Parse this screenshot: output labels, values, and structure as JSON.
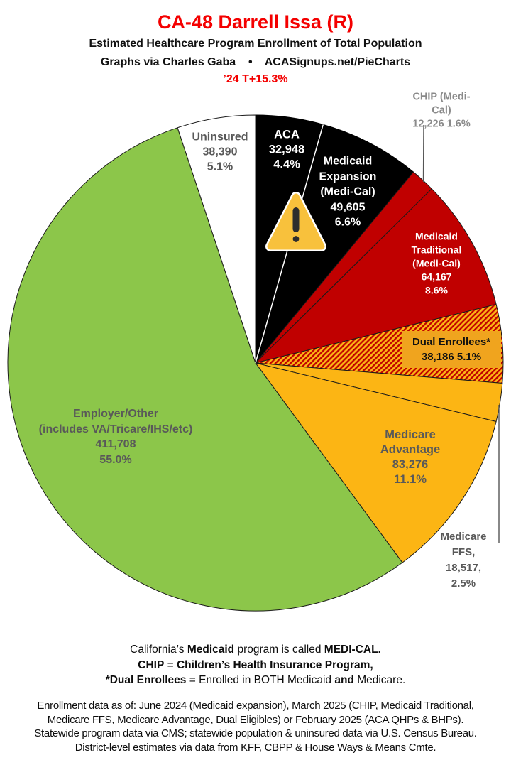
{
  "header": {
    "title": "CA-48 Darrell Issa (R)",
    "subtitle": "Estimated Healthcare Program Enrollment of Total Population",
    "byline": "Graphs via Charles Gaba    •    ACASignups.net/PieCharts",
    "trend_note": "’24 T+15.3%"
  },
  "colors": {
    "title_red": "#F40000",
    "dark_red": "#C00000",
    "gold": "#FCB514",
    "green": "#8CC64A",
    "black": "#000000",
    "white": "#FFFFFF",
    "label_gray": "#595959",
    "muted_gray": "#8A8A8A",
    "callout_line": "#555555",
    "dual_box": "#F0A41E",
    "warning_fill": "#F8C13C",
    "warning_glyph": "#2D2D2D"
  },
  "chart_data": {
    "type": "pie",
    "title": "CA-48 Darrell Issa (R) — Estimated Healthcare Program Enrollment of Total Population",
    "units": "people",
    "start_angle_deg": 0,
    "direction": "clockwise",
    "legend_position": "in-slice labels",
    "slices": [
      {
        "id": "aca",
        "label": "ACA",
        "value": 32948,
        "pct": 4.4,
        "color": "#000000"
      },
      {
        "id": "medicaid-expansion",
        "label": "Medicaid Expansion (Medi-Cal)",
        "value": 49605,
        "pct": 6.6,
        "color": "#000000"
      },
      {
        "id": "chip",
        "label": "CHIP (Medi-Cal)",
        "value": 12226,
        "pct": 1.6,
        "color": "#C00000"
      },
      {
        "id": "medicaid-traditional",
        "label": "Medicaid Traditional (Medi-Cal)",
        "value": 64167,
        "pct": 8.6,
        "color": "#C00000"
      },
      {
        "id": "dual-enrollees",
        "label": "Dual Enrollees*",
        "value": 38186,
        "pct": 5.1,
        "color": "hatch"
      },
      {
        "id": "medicare-ffs",
        "label": "Medicare FFS",
        "value": 18517,
        "pct": 2.5,
        "color": "#FCB514"
      },
      {
        "id": "medicare-advantage",
        "label": "Medicare Advantage",
        "value": 83276,
        "pct": 11.1,
        "color": "#FCB514"
      },
      {
        "id": "employer-other",
        "label": "Employer/Other (includes VA/Tricare/IHS/etc)",
        "value": 411708,
        "pct": 55.0,
        "color": "#8CC64A"
      },
      {
        "id": "uninsured",
        "label": "Uninsured",
        "value": 38390,
        "pct": 5.1,
        "color": "#FFFFFF"
      }
    ],
    "hatch": {
      "background": "#FCB514",
      "stripe": "#C00000"
    }
  },
  "slice_labels": {
    "uninsured": [
      "Uninsured",
      "38,390",
      "5.1%"
    ],
    "aca": [
      "ACA",
      "32,948",
      "4.4%"
    ],
    "expansion": [
      "Medicaid",
      "Expansion",
      "(Medi-Cal)",
      "49,605",
      "6.6%"
    ],
    "chip": [
      "CHIP (Medi-Cal)",
      "12,226 1.6%"
    ],
    "traditional": [
      "Medicaid",
      "Traditional",
      "(Medi-Cal)",
      "64,167",
      "8.6%"
    ],
    "dual": [
      "Dual Enrollees*",
      "38,186 5.1%"
    ],
    "ffs": [
      "Medicare FFS,",
      "18,517, 2.5%"
    ],
    "advantage": [
      "Medicare",
      "Advantage",
      "83,276",
      "11.1%"
    ],
    "employer": [
      "Employer/Other",
      "(includes VA/Tricare/IHS/etc)",
      "411,708",
      "55.0%"
    ]
  },
  "notes": {
    "lines": [
      [
        {
          "t": "California’s "
        },
        {
          "t": "Medicaid",
          "b": true
        },
        {
          "t": " program is called "
        },
        {
          "t": "MEDI-CAL.",
          "b": true
        }
      ],
      [
        {
          "t": "CHIP",
          "b": true
        },
        {
          "t": " = "
        },
        {
          "t": "Children’s Health Insurance Program,",
          "b": true
        }
      ],
      [
        {
          "t": "*Dual Enrollees",
          "b": true
        },
        {
          "t": " = Enrolled in BOTH Medicaid "
        },
        {
          "t": "and",
          "b": true
        },
        {
          "t": " Medicare."
        }
      ]
    ]
  },
  "fine_print": [
    "Enrollment data as of: June 2024 (Medicaid expansion), March 2025 (CHIP, Medicaid Traditional,",
    "Medicare FFS, Medicare Advantage, Dual Eligibles) or February 2025 (ACA QHPs & BHPs).",
    "Statewide program data via CMS; statewide population & uninsured data via U.S. Census Bureau.",
    "District-level estimates via data from KFF, CBPP & House Ways & Means Cmte."
  ]
}
